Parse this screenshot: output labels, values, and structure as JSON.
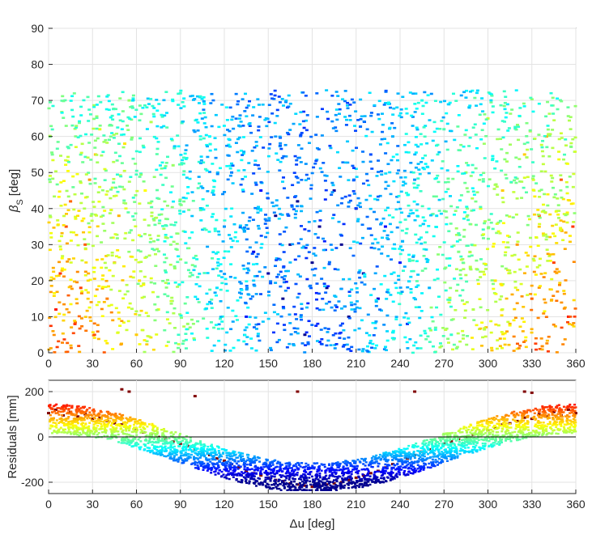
{
  "chart_data": [
    {
      "type": "scatter",
      "panel": "top",
      "xlabel": "",
      "ylabel": "β_S [deg]",
      "ylabel_main": "β",
      "ylabel_sub": "S",
      "ylabel_unit": "[deg]",
      "xlim": [
        0,
        360
      ],
      "ylim": [
        0,
        90
      ],
      "xticks": [
        0,
        30,
        60,
        90,
        120,
        150,
        180,
        210,
        240,
        270,
        300,
        330,
        360
      ],
      "yticks": [
        0,
        10,
        20,
        30,
        40,
        50,
        60,
        70,
        80,
        90
      ],
      "grid": true,
      "colormap": "jet",
      "color_encodes": "residual",
      "color_range": [
        -200,
        200
      ],
      "colormap_colors": [
        "#00008f",
        "#0000ff",
        "#00ffff",
        "#ffff00",
        "#ff0000",
        "#800000"
      ],
      "point_color_trend": "red near Δu = 0/360 at low β_S, dark blue near Δu = 180, cyan-blue at high β_S",
      "series": [
        {
          "points": [
            [
              5,
              12,
              140
            ],
            [
              8,
              22,
              130
            ],
            [
              12,
              35,
              120
            ],
            [
              15,
              42,
              110
            ],
            [
              18,
              8,
              135
            ],
            [
              22,
              18,
              125
            ],
            [
              25,
              30,
              115
            ],
            [
              28,
              48,
              90
            ],
            [
              32,
              55,
              70
            ],
            [
              35,
              62,
              40
            ],
            [
              40,
              15,
              100
            ],
            [
              45,
              25,
              90
            ],
            [
              48,
              38,
              80
            ],
            [
              52,
              58,
              60
            ],
            [
              55,
              70,
              10
            ],
            [
              60,
              5,
              70
            ],
            [
              62,
              20,
              60
            ],
            [
              66,
              45,
              50
            ],
            [
              70,
              64,
              20
            ],
            [
              75,
              12,
              40
            ],
            [
              80,
              32,
              20
            ],
            [
              85,
              52,
              10
            ],
            [
              90,
              72,
              -30
            ],
            [
              95,
              8,
              10
            ],
            [
              100,
              24,
              -20
            ],
            [
              105,
              40,
              -40
            ],
            [
              110,
              60,
              -50
            ],
            [
              115,
              18,
              -60
            ],
            [
              120,
              35,
              -90
            ],
            [
              125,
              50,
              -100
            ],
            [
              130,
              63,
              -80
            ],
            [
              135,
              10,
              -140
            ],
            [
              140,
              28,
              -160
            ],
            [
              145,
              45,
              -150
            ],
            [
              150,
              22,
              -190
            ],
            [
              155,
              38,
              -200
            ],
            [
              160,
              15,
              -210
            ],
            [
              165,
              30,
              -215
            ],
            [
              170,
              42,
              -200
            ],
            [
              175,
              5,
              -220
            ],
            [
              180,
              25,
              -225
            ],
            [
              185,
              35,
              -215
            ],
            [
              190,
              18,
              -220
            ],
            [
              195,
              45,
              -190
            ],
            [
              200,
              30,
              -210
            ],
            [
              205,
              10,
              -215
            ],
            [
              210,
              40,
              -180
            ],
            [
              215,
              22,
              -190
            ],
            [
              220,
              55,
              -120
            ],
            [
              225,
              15,
              -170
            ],
            [
              230,
              35,
              -150
            ],
            [
              235,
              60,
              -80
            ],
            [
              240,
              25,
              -140
            ],
            [
              245,
              8,
              -130
            ],
            [
              250,
              48,
              -90
            ],
            [
              255,
              70,
              -40
            ],
            [
              260,
              18,
              -80
            ],
            [
              265,
              38,
              -60
            ],
            [
              270,
              62,
              -20
            ],
            [
              275,
              5,
              -30
            ],
            [
              280,
              28,
              0
            ],
            [
              285,
              50,
              10
            ],
            [
              290,
              12,
              20
            ],
            [
              295,
              40,
              40
            ],
            [
              300,
              65,
              30
            ],
            [
              305,
              20,
              60
            ],
            [
              310,
              45,
              70
            ],
            [
              315,
              8,
              80
            ],
            [
              320,
              30,
              90
            ],
            [
              325,
              55,
              70
            ],
            [
              330,
              15,
              110
            ],
            [
              335,
              38,
              110
            ],
            [
              340,
              60,
              80
            ],
            [
              345,
              25,
              125
            ],
            [
              350,
              48,
              115
            ],
            [
              355,
              10,
              140
            ],
            [
              358,
              35,
              130
            ]
          ]
        }
      ]
    },
    {
      "type": "scatter",
      "panel": "bottom",
      "xlabel": "Δu [deg]",
      "ylabel": "Residuals [mm]",
      "xlim": [
        0,
        360
      ],
      "ylim": [
        -250,
        250
      ],
      "xticks": [
        0,
        30,
        60,
        90,
        120,
        150,
        180,
        210,
        240,
        270,
        300,
        330,
        360
      ],
      "yticks": [
        -200,
        0,
        200
      ],
      "grid": true,
      "zero_line": true,
      "colormap": "jet",
      "color_encodes": "residual",
      "color_range": [
        -200,
        200
      ],
      "trend": "residual ≈ 100·cos(Δu) band of width ±60, minimum ≈ -200 at Δu = 180",
      "series": [
        {
          "points": [
            [
              0,
              105
            ],
            [
              5,
              120
            ],
            [
              10,
              95
            ],
            [
              15,
              110
            ],
            [
              20,
              90
            ],
            [
              25,
              100
            ],
            [
              30,
              80
            ],
            [
              35,
              85
            ],
            [
              40,
              70
            ],
            [
              45,
              60
            ],
            [
              50,
              55
            ],
            [
              55,
              40
            ],
            [
              60,
              30
            ],
            [
              65,
              20
            ],
            [
              70,
              10
            ],
            [
              75,
              0
            ],
            [
              80,
              -10
            ],
            [
              85,
              -20
            ],
            [
              90,
              -30
            ],
            [
              95,
              -40
            ],
            [
              100,
              -55
            ],
            [
              105,
              -65
            ],
            [
              110,
              -80
            ],
            [
              115,
              -95
            ],
            [
              120,
              -105
            ],
            [
              125,
              -120
            ],
            [
              130,
              -135
            ],
            [
              135,
              -150
            ],
            [
              140,
              -160
            ],
            [
              145,
              -170
            ],
            [
              150,
              -180
            ],
            [
              155,
              -190
            ],
            [
              160,
              -195
            ],
            [
              165,
              -205
            ],
            [
              170,
              -210
            ],
            [
              175,
              -215
            ],
            [
              180,
              -220
            ],
            [
              185,
              -215
            ],
            [
              190,
              -210
            ],
            [
              195,
              -205
            ],
            [
              200,
              -200
            ],
            [
              205,
              -190
            ],
            [
              210,
              -180
            ],
            [
              215,
              -170
            ],
            [
              220,
              -160
            ],
            [
              225,
              -150
            ],
            [
              230,
              -135
            ],
            [
              235,
              -120
            ],
            [
              240,
              -105
            ],
            [
              245,
              -95
            ],
            [
              250,
              -80
            ],
            [
              255,
              -65
            ],
            [
              260,
              -55
            ],
            [
              265,
              -40
            ],
            [
              270,
              -30
            ],
            [
              275,
              -20
            ],
            [
              280,
              -10
            ],
            [
              285,
              0
            ],
            [
              290,
              10
            ],
            [
              295,
              20
            ],
            [
              300,
              30
            ],
            [
              305,
              40
            ],
            [
              310,
              55
            ],
            [
              315,
              60
            ],
            [
              320,
              70
            ],
            [
              325,
              85
            ],
            [
              330,
              80
            ],
            [
              335,
              100
            ],
            [
              340,
              90
            ],
            [
              345,
              110
            ],
            [
              350,
              95
            ],
            [
              355,
              120
            ],
            [
              360,
              105
            ],
            [
              50,
              210
            ],
            [
              55,
              200
            ],
            [
              100,
              180
            ],
            [
              170,
              200
            ],
            [
              250,
              200
            ],
            [
              325,
              200
            ],
            [
              330,
              195
            ]
          ]
        }
      ]
    }
  ]
}
